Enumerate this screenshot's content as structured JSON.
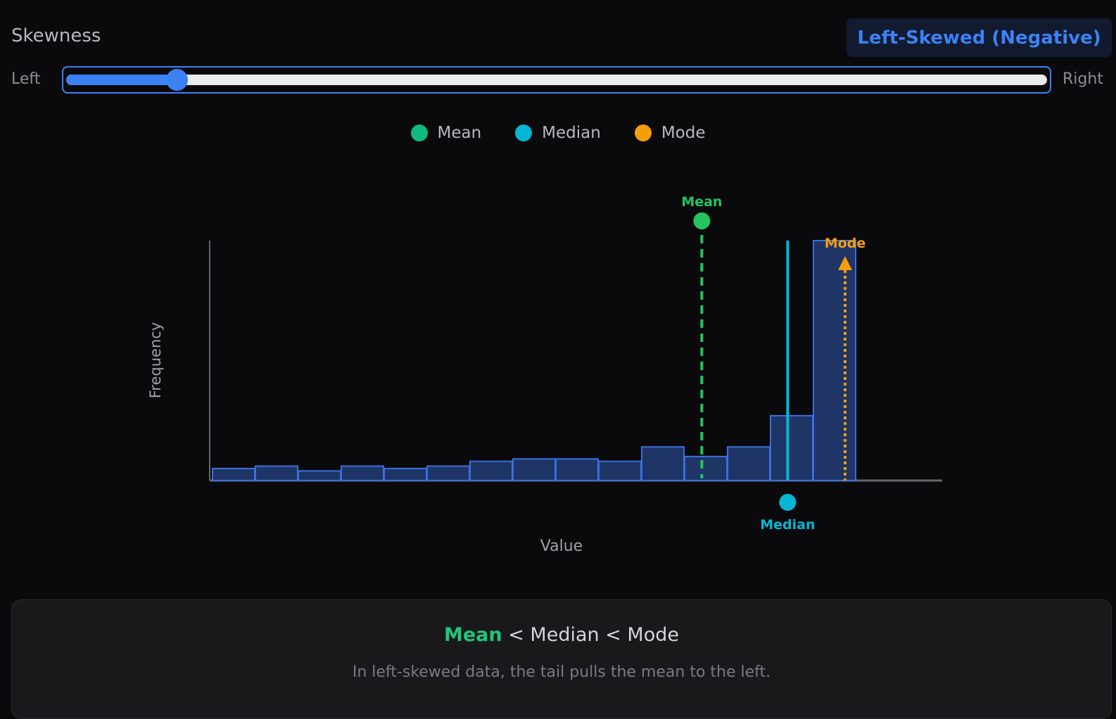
{
  "header": {
    "title": "Skewness",
    "badge": "Left-Skewed (Negative)"
  },
  "slider": {
    "left_label": "Left",
    "right_label": "Right",
    "position": 0.11
  },
  "legend": [
    {
      "label": "Mean",
      "color": "#10b981"
    },
    {
      "label": "Median",
      "color": "#06b6d4"
    },
    {
      "label": "Mode",
      "color": "#f59e0b"
    }
  ],
  "chart_data": {
    "type": "bar",
    "xlabel": "Value",
    "ylabel": "Frequency",
    "bins": 15,
    "values": [
      5,
      6,
      4,
      6,
      5,
      6,
      8,
      9,
      9,
      8,
      14,
      10,
      14,
      27,
      100
    ],
    "ylim": [
      0,
      100
    ],
    "grid": false,
    "markers": [
      {
        "label": "Mean",
        "bin_position": 11.4,
        "color": "#22c55e",
        "style": "dashed"
      },
      {
        "label": "Median",
        "bin_position": 13.4,
        "color": "#06b6d4",
        "style": "solid"
      },
      {
        "label": "Mode",
        "bin_position": 15.0,
        "color": "#f59e0b",
        "style": "dotted"
      }
    ]
  },
  "summary": {
    "mean": "Mean",
    "relation": " < Median < Mode",
    "description": "In left-skewed data, the tail pulls the mean to the left."
  },
  "colors": {
    "accent": "#3b82f6",
    "bar_fill": "#1e3566",
    "bar_stroke": "#3b6fe0"
  }
}
